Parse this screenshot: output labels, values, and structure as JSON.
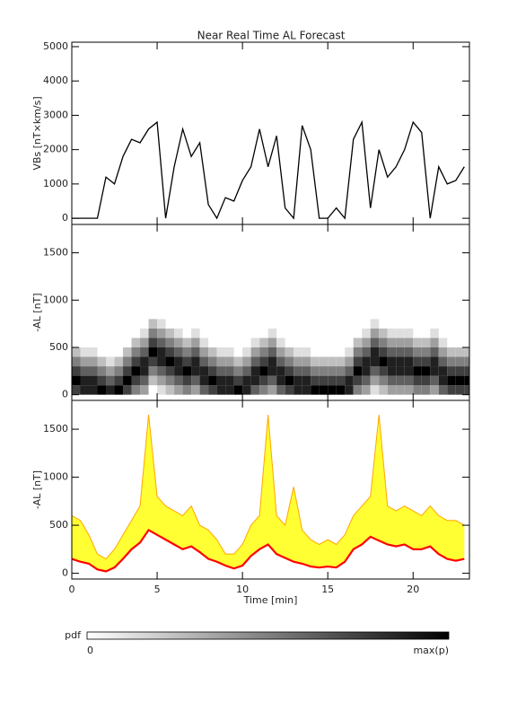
{
  "title": "Near Real Time AL Forecast",
  "colorbar": {
    "label": "pdf",
    "zlim": [
      0,
      8
    ],
    "zticks": [
      0,
      {
        "value": 8,
        "label": "max(p)"
      }
    ]
  },
  "chart_data": [
    {
      "type": "line",
      "ylabel": "VBs [nT×km/s]",
      "color": "#000000",
      "xtick_labels": false,
      "x": [
        0,
        0.5,
        1,
        1.5,
        2,
        2.5,
        3,
        3.5,
        4,
        4.5,
        5,
        5.5,
        6,
        6.5,
        7,
        7.5,
        8,
        8.5,
        9,
        9.5,
        10,
        10.5,
        11,
        11.5,
        12,
        12.5,
        13,
        13.5,
        14,
        14.5,
        15,
        15.5,
        16,
        16.5,
        17,
        17.5,
        18,
        18.5,
        19,
        19.5,
        20,
        20.5,
        21,
        21.5,
        22,
        22.5,
        23
      ],
      "values": [
        0,
        0,
        0,
        0,
        1200,
        1000,
        1800,
        2300,
        2200,
        2600,
        2800,
        0,
        1500,
        2600,
        1800,
        2200,
        400,
        0,
        600,
        500,
        1100,
        1500,
        2600,
        1500,
        2400,
        300,
        0,
        2700,
        2000,
        0,
        0,
        300,
        0,
        2300,
        2800,
        300,
        2000,
        1200,
        1500,
        2000,
        2800,
        2500,
        0,
        1500,
        1000,
        1100,
        1500
      ],
      "xlim": [
        0,
        23.3
      ],
      "xticks": [
        0,
        5,
        10,
        15,
        20
      ],
      "ylim": [
        -180,
        5130
      ],
      "yticks": [
        0,
        1000,
        2000,
        3000,
        4000,
        5000
      ]
    },
    {
      "type": "heatmap",
      "ylabel": "-AL [nT]",
      "xtick_labels": false,
      "xbins": [
        0,
        0.5,
        1,
        1.5,
        2,
        2.5,
        3,
        3.5,
        4,
        4.5,
        5,
        5.5,
        6,
        6.5,
        7,
        7.5,
        8,
        8.5,
        9,
        9.5,
        10,
        10.5,
        11,
        11.5,
        12,
        12.5,
        13,
        13.5,
        14,
        14.5,
        15,
        15.5,
        16,
        16.5,
        17,
        17.5,
        18,
        18.5,
        19,
        19.5,
        20,
        20.5,
        21,
        21.5,
        22,
        22.5,
        23,
        23.5
      ],
      "ybins": [
        0,
        100,
        200,
        300,
        400,
        500,
        600,
        700,
        800
      ],
      "z": [
        [
          6,
          8,
          6,
          4,
          2,
          0,
          0,
          0
        ],
        [
          7,
          7,
          5,
          3,
          1,
          0,
          0,
          0
        ],
        [
          7,
          7,
          5,
          3,
          1,
          0,
          0,
          0
        ],
        [
          8,
          6,
          4,
          2,
          0,
          0,
          0,
          0
        ],
        [
          7,
          5,
          3,
          1,
          0,
          0,
          0,
          0
        ],
        [
          8,
          6,
          4,
          2,
          0,
          0,
          0,
          0
        ],
        [
          6,
          8,
          6,
          4,
          2,
          0,
          0,
          0
        ],
        [
          4,
          6,
          8,
          6,
          4,
          2,
          0,
          0
        ],
        [
          3,
          5,
          7,
          7,
          5,
          3,
          1,
          0
        ],
        [
          0,
          2,
          4,
          6,
          8,
          6,
          4,
          2
        ],
        [
          1,
          3,
          5,
          7,
          7,
          5,
          3,
          1
        ],
        [
          2,
          4,
          6,
          8,
          6,
          4,
          2,
          0
        ],
        [
          3,
          5,
          7,
          7,
          5,
          3,
          1,
          0
        ],
        [
          4,
          6,
          8,
          6,
          4,
          2,
          0,
          0
        ],
        [
          3,
          5,
          7,
          7,
          5,
          3,
          1,
          0
        ],
        [
          5,
          7,
          7,
          5,
          3,
          1,
          0,
          0
        ],
        [
          6,
          8,
          6,
          4,
          2,
          0,
          0,
          0
        ],
        [
          7,
          7,
          5,
          3,
          1,
          0,
          0,
          0
        ],
        [
          7,
          7,
          5,
          3,
          1,
          0,
          0,
          0
        ],
        [
          8,
          6,
          4,
          2,
          0,
          0,
          0,
          0
        ],
        [
          7,
          7,
          5,
          3,
          1,
          0,
          0,
          0
        ],
        [
          5,
          7,
          7,
          5,
          3,
          1,
          0,
          0
        ],
        [
          4,
          6,
          8,
          6,
          4,
          2,
          0,
          0
        ],
        [
          3,
          5,
          7,
          7,
          5,
          3,
          1,
          0
        ],
        [
          5,
          7,
          7,
          5,
          3,
          1,
          0,
          0
        ],
        [
          6,
          8,
          6,
          4,
          2,
          0,
          0,
          0
        ],
        [
          7,
          7,
          5,
          3,
          1,
          0,
          0,
          0
        ],
        [
          7,
          7,
          5,
          3,
          1,
          0,
          0,
          0
        ],
        [
          8,
          6,
          4,
          2,
          0,
          0,
          0,
          0
        ],
        [
          8,
          6,
          4,
          2,
          0,
          0,
          0,
          0
        ],
        [
          8,
          6,
          4,
          2,
          0,
          0,
          0,
          0
        ],
        [
          8,
          6,
          4,
          2,
          0,
          0,
          0,
          0
        ],
        [
          7,
          7,
          5,
          3,
          1,
          0,
          0,
          0
        ],
        [
          4,
          6,
          8,
          6,
          4,
          2,
          0,
          0
        ],
        [
          3,
          5,
          7,
          7,
          5,
          3,
          1,
          0
        ],
        [
          1,
          3,
          5,
          7,
          7,
          5,
          3,
          1
        ],
        [
          2,
          4,
          6,
          8,
          6,
          4,
          2,
          0
        ],
        [
          3,
          5,
          7,
          7,
          5,
          3,
          1,
          0
        ],
        [
          3,
          5,
          7,
          7,
          5,
          3,
          1,
          0
        ],
        [
          3,
          5,
          7,
          7,
          5,
          3,
          1,
          0
        ],
        [
          4,
          6,
          8,
          6,
          4,
          2,
          0,
          0
        ],
        [
          4,
          6,
          8,
          6,
          4,
          2,
          0,
          0
        ],
        [
          3,
          5,
          7,
          7,
          5,
          3,
          1,
          0
        ],
        [
          5,
          7,
          7,
          5,
          3,
          1,
          0,
          0
        ],
        [
          6,
          8,
          6,
          4,
          2,
          0,
          0,
          0
        ],
        [
          6,
          8,
          6,
          4,
          2,
          0,
          0,
          0
        ],
        [
          6,
          8,
          6,
          4,
          2,
          0,
          0,
          0
        ]
      ],
      "xlim": [
        0,
        23.3
      ],
      "xticks": [
        0,
        5,
        10,
        15,
        20
      ],
      "ylim": [
        -60,
        1800
      ],
      "yticks": [
        0,
        500,
        1000,
        1500
      ]
    },
    {
      "type": "band",
      "ylabel": "-AL [nT]",
      "xlabel": "Time [min]",
      "xtick_labels": true,
      "fill": "#ffff33",
      "x": [
        0,
        0.5,
        1,
        1.5,
        2,
        2.5,
        3,
        3.5,
        4,
        4.5,
        5,
        5.5,
        6,
        6.5,
        7,
        7.5,
        8,
        8.5,
        9,
        9.5,
        10,
        10.5,
        11,
        11.5,
        12,
        12.5,
        13,
        13.5,
        14,
        14.5,
        15,
        15.5,
        16,
        16.5,
        17,
        17.5,
        18,
        18.5,
        19,
        19.5,
        20,
        20.5,
        21,
        21.5,
        22,
        22.5,
        23
      ],
      "series": [
        {
          "color": "#ffa500",
          "values": [
            600,
            550,
            400,
            200,
            150,
            250,
            400,
            550,
            700,
            1650,
            800,
            700,
            650,
            600,
            700,
            500,
            450,
            350,
            200,
            200,
            300,
            500,
            600,
            1650,
            600,
            500,
            900,
            450,
            350,
            300,
            350,
            300,
            400,
            600,
            700,
            800,
            1650,
            700,
            650,
            700,
            650,
            600,
            700,
            600,
            550,
            550,
            500
          ]
        },
        {
          "color": "#ff0000",
          "values": [
            150,
            120,
            100,
            40,
            20,
            60,
            150,
            250,
            320,
            450,
            400,
            350,
            300,
            250,
            280,
            220,
            150,
            120,
            80,
            50,
            80,
            180,
            250,
            300,
            200,
            160,
            120,
            100,
            70,
            60,
            70,
            60,
            120,
            250,
            300,
            380,
            340,
            300,
            280,
            300,
            250,
            250,
            280,
            200,
            150,
            130,
            150
          ]
        }
      ],
      "xlim": [
        0,
        23.3
      ],
      "xticks": [
        0,
        5,
        10,
        15,
        20
      ],
      "ylim": [
        -60,
        1800
      ],
      "yticks": [
        0,
        500,
        1000,
        1500
      ]
    }
  ]
}
